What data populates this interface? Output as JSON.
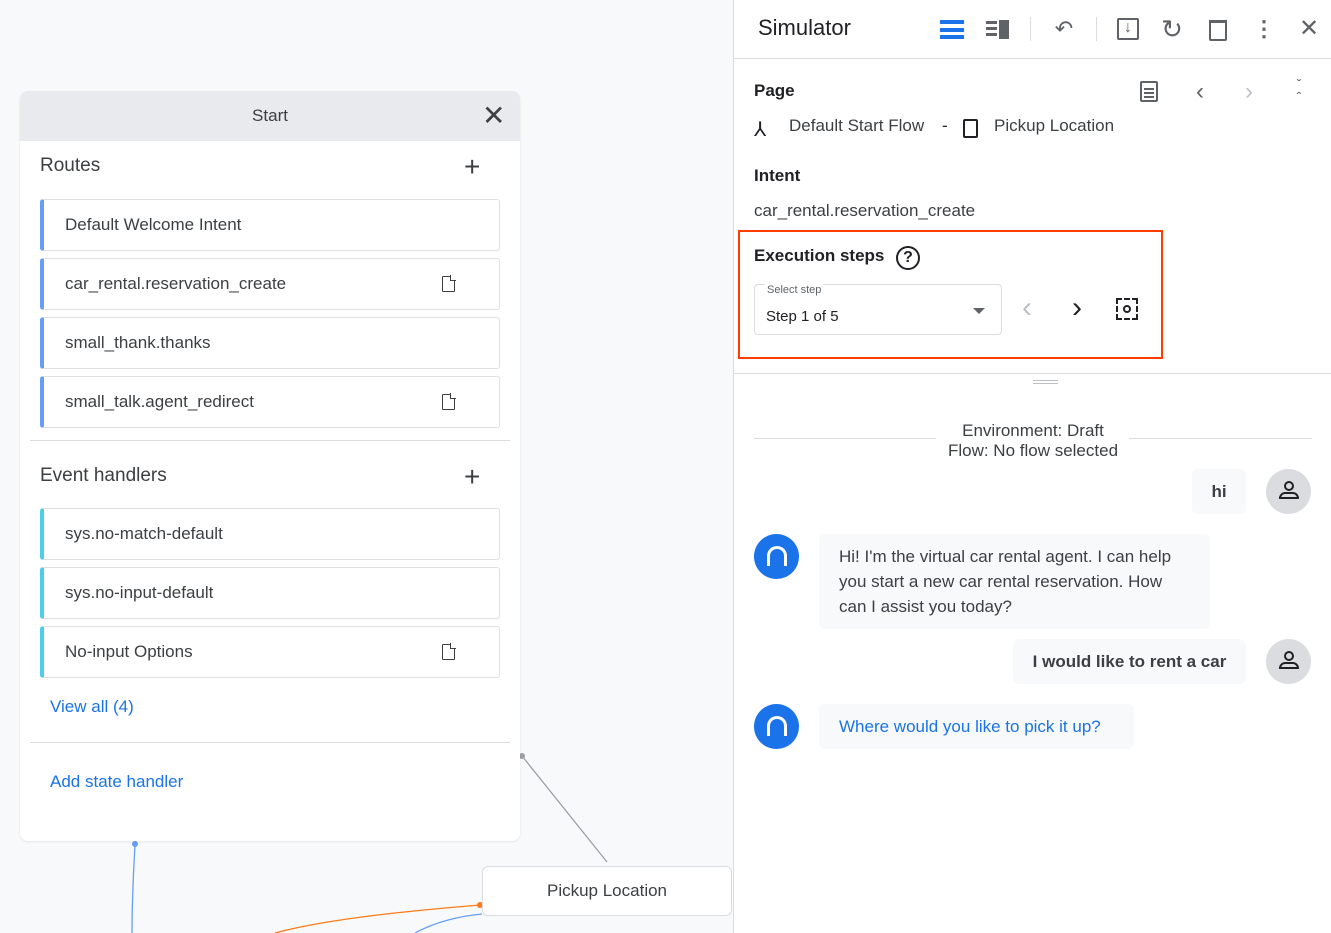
{
  "flow_canvas": {
    "card_title": "Start",
    "routes_title": "Routes",
    "routes": [
      {
        "label": "Default Welcome Intent",
        "has_doc": false
      },
      {
        "label": "car_rental.reservation_create",
        "has_doc": true
      },
      {
        "label": "small_thank.thanks",
        "has_doc": false
      },
      {
        "label": "small_talk.agent_redirect",
        "has_doc": true
      }
    ],
    "event_handlers_title": "Event handlers",
    "event_handlers": [
      {
        "label": "sys.no-match-default",
        "has_doc": false
      },
      {
        "label": "sys.no-input-default",
        "has_doc": false
      },
      {
        "label": "No-input Options",
        "has_doc": true
      }
    ],
    "view_all": "View all (4)",
    "add_state_handler": "Add state handler",
    "pickup_node": "Pickup Location"
  },
  "simulator": {
    "title": "Simulator",
    "page_label": "Page",
    "flow_name": "Default Start Flow",
    "separator": "-",
    "page_name": "Pickup Location",
    "intent_label": "Intent",
    "intent_value": "car_rental.reservation_create",
    "execution_steps_label": "Execution steps",
    "select_step_label": "Select step",
    "select_step_value": "Step 1 of 5",
    "environment": "Environment: Draft",
    "flow_status": "Flow: No flow selected",
    "messages": [
      {
        "role": "user",
        "text": "hi"
      },
      {
        "role": "agent",
        "text": "Hi! I'm the virtual car rental agent. I can help you start a new car rental reservation. How can I assist you today?"
      },
      {
        "role": "user",
        "text": "I would like to rent a car"
      },
      {
        "role": "agent",
        "text": "Where would you like to pick it up?"
      }
    ],
    "colors": {
      "accent": "#1a73e8",
      "highlight": "#ff3d00",
      "route_border": "#669df6",
      "event_border": "#4ecde6"
    }
  }
}
